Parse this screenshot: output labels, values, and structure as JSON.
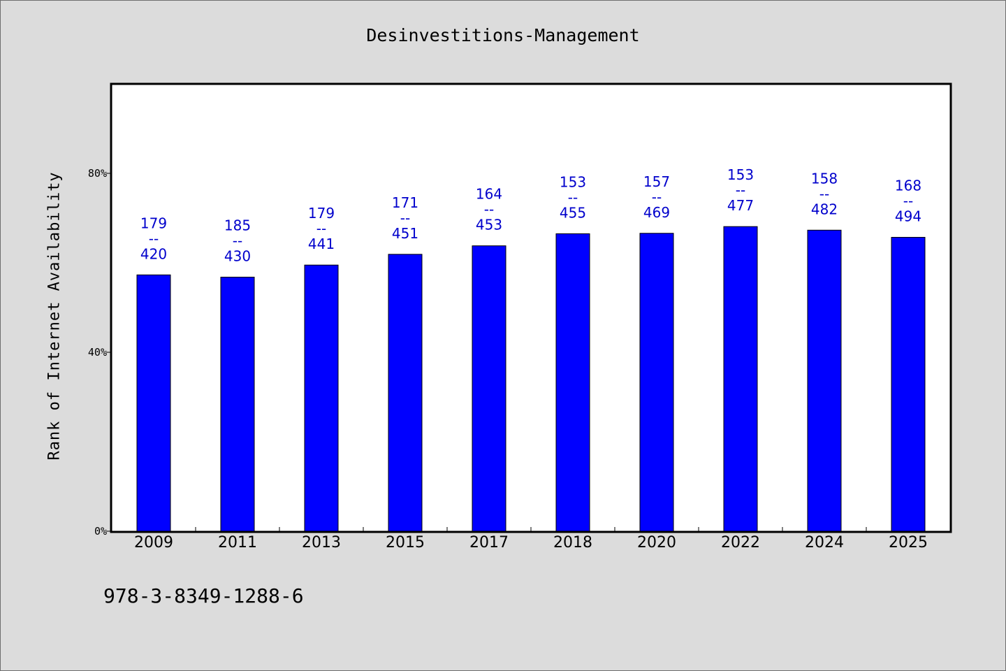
{
  "chart_data": {
    "type": "bar",
    "title": "Desinvestitions-Management",
    "xlabel": "",
    "ylabel": "Rank of Internet Availability",
    "categories": [
      "2009",
      "2011",
      "2013",
      "2015",
      "2017",
      "2018",
      "2020",
      "2022",
      "2024",
      "2025"
    ],
    "series": [
      {
        "values": [
          57.3,
          56.8,
          59.5,
          61.9,
          63.8,
          66.5,
          66.6,
          68.1,
          67.3,
          65.7
        ],
        "data_labels": [
          "179\n--\n420",
          "185\n--\n430",
          "179\n--\n441",
          "171\n--\n451",
          "164\n--\n453",
          "153\n--\n455",
          "157\n--\n469",
          "153\n--\n477",
          "158\n--\n482",
          "168\n--\n494"
        ],
        "color": "#0000ff"
      }
    ],
    "ylim": [
      0,
      100
    ],
    "yticks": [
      "0%",
      "40%",
      "80%"
    ],
    "ytick_values": [
      0,
      40,
      80
    ],
    "grid": false,
    "label_color": "#0000cc",
    "background": "#dcdcdc",
    "plot_background": "#ffffff"
  },
  "footer": {
    "isbn": "978-3-8349-1288-6"
  }
}
